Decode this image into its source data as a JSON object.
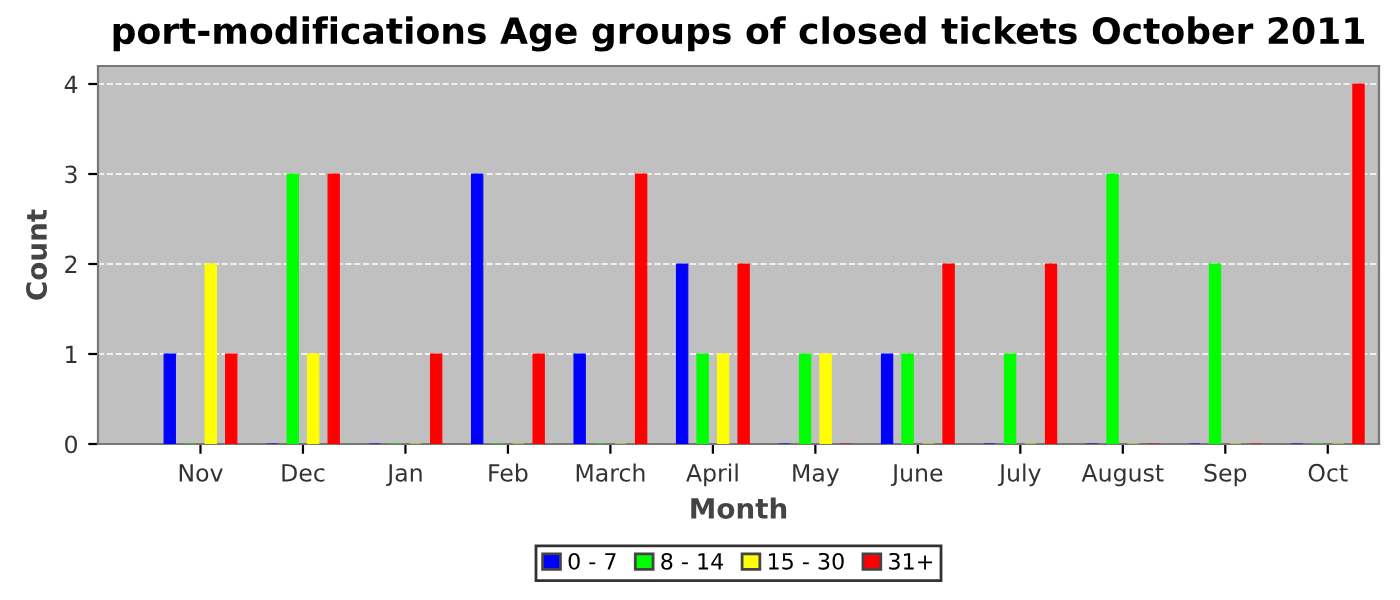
{
  "chart_data": {
    "type": "bar",
    "title": "port-modifications Age groups of closed tickets October 2011",
    "xlabel": "Month",
    "ylabel": "Count",
    "categories": [
      "Nov",
      "Dec",
      "Jan",
      "Feb",
      "March",
      "April",
      "May",
      "June",
      "July",
      "August",
      "Sep",
      "Oct"
    ],
    "series": [
      {
        "name": "0 - 7",
        "color": "#0000ff",
        "values": [
          1,
          0,
          0,
          3,
          1,
          2,
          0,
          1,
          0,
          0,
          0,
          0
        ]
      },
      {
        "name": "8 - 14",
        "color": "#00ff00",
        "values": [
          0,
          3,
          0,
          0,
          0,
          1,
          1,
          1,
          1,
          3,
          2,
          0
        ]
      },
      {
        "name": "15 - 30",
        "color": "#ffff00",
        "values": [
          2,
          1,
          0,
          0,
          0,
          1,
          1,
          0,
          0,
          0,
          0,
          0
        ]
      },
      {
        "name": "31+",
        "color": "#ff0000",
        "values": [
          1,
          3,
          1,
          1,
          3,
          2,
          0,
          2,
          2,
          0,
          0,
          4
        ]
      }
    ],
    "ylim": [
      0,
      4.2
    ],
    "yticks": [
      0,
      1,
      2,
      3,
      4
    ],
    "grid": "y",
    "legend": "bottom"
  }
}
